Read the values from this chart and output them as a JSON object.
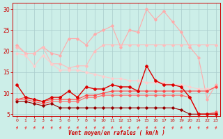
{
  "title": "",
  "xlabel": "Vent moyen/en rafales ( km/h )",
  "background_color": "#cceee8",
  "grid_color": "#aacccc",
  "xlim": [
    -0.5,
    23.5
  ],
  "ylim": [
    4.5,
    31.5
  ],
  "yticks": [
    5,
    10,
    15,
    20,
    25,
    30
  ],
  "xticks": [
    0,
    1,
    2,
    3,
    4,
    5,
    6,
    7,
    8,
    9,
    10,
    11,
    12,
    13,
    14,
    15,
    16,
    17,
    18,
    19,
    20,
    21,
    22,
    23
  ],
  "lines": [
    {
      "x": [
        0,
        1,
        2,
        3,
        4,
        5,
        6,
        7,
        8,
        9,
        10,
        11,
        12,
        13,
        14,
        15,
        16,
        17,
        18,
        19,
        20,
        21,
        22,
        23
      ],
      "y": [
        21.5,
        19.5,
        19.5,
        21.0,
        19.5,
        19.0,
        23.0,
        23.0,
        21.5,
        24.0,
        25.0,
        26.0,
        21.0,
        25.0,
        24.5,
        30.0,
        27.5,
        29.5,
        27.0,
        24.5,
        21.0,
        18.5,
        8.5,
        12.0
      ],
      "color": "#ffaaaa",
      "marker": "D",
      "markersize": 1.8,
      "linewidth": 0.8,
      "zorder": 2
    },
    {
      "x": [
        0,
        1,
        2,
        3,
        4,
        5,
        6,
        7,
        8,
        9,
        10,
        11,
        12,
        13,
        14,
        15,
        16,
        17,
        18,
        19,
        20,
        21,
        22,
        23
      ],
      "y": [
        21.0,
        19.5,
        19.5,
        21.0,
        17.0,
        17.0,
        16.0,
        16.5,
        16.5,
        20.0,
        21.5,
        21.5,
        21.5,
        21.5,
        21.5,
        21.5,
        21.5,
        21.5,
        21.5,
        21.5,
        21.5,
        21.5,
        21.5,
        21.5
      ],
      "color": "#ffbbbb",
      "marker": "D",
      "markersize": 1.8,
      "linewidth": 0.8,
      "zorder": 2
    },
    {
      "x": [
        0,
        1,
        2,
        3,
        4,
        5,
        6,
        7,
        8,
        9,
        10,
        11,
        12,
        13,
        14,
        15,
        16,
        17,
        18,
        19,
        20,
        21,
        22,
        23
      ],
      "y": [
        19.5,
        19.0,
        16.5,
        19.0,
        17.0,
        15.5,
        15.5,
        15.5,
        15.0,
        14.5,
        14.0,
        13.5,
        13.5,
        13.0,
        13.0,
        12.5,
        12.5,
        12.5,
        12.0,
        12.0,
        11.5,
        11.0,
        11.0,
        11.5
      ],
      "color": "#ffcccc",
      "marker": "D",
      "markersize": 1.8,
      "linewidth": 0.8,
      "zorder": 2
    },
    {
      "x": [
        0,
        1,
        2,
        3,
        4,
        5,
        6,
        7,
        8,
        9,
        10,
        11,
        12,
        13,
        14,
        15,
        16,
        17,
        18,
        19,
        20,
        21,
        22,
        23
      ],
      "y": [
        12.0,
        9.0,
        8.5,
        8.0,
        9.0,
        9.0,
        10.5,
        9.0,
        11.5,
        11.0,
        11.0,
        12.0,
        11.5,
        11.5,
        10.5,
        16.5,
        13.0,
        12.0,
        12.0,
        11.5,
        9.0,
        5.0,
        5.0,
        5.0
      ],
      "color": "#dd0000",
      "marker": "D",
      "markersize": 2.0,
      "linewidth": 1.0,
      "zorder": 3
    },
    {
      "x": [
        0,
        1,
        2,
        3,
        4,
        5,
        6,
        7,
        8,
        9,
        10,
        11,
        12,
        13,
        14,
        15,
        16,
        17,
        18,
        19,
        20,
        21,
        22,
        23
      ],
      "y": [
        8.5,
        9.0,
        8.5,
        8.0,
        8.5,
        8.5,
        8.5,
        8.5,
        9.5,
        9.5,
        10.0,
        10.5,
        10.5,
        10.5,
        10.5,
        10.5,
        10.5,
        10.5,
        10.5,
        10.5,
        10.5,
        10.5,
        10.5,
        11.5
      ],
      "color": "#ff4444",
      "marker": "D",
      "markersize": 1.8,
      "linewidth": 0.8,
      "zorder": 2
    },
    {
      "x": [
        0,
        1,
        2,
        3,
        4,
        5,
        6,
        7,
        8,
        9,
        10,
        11,
        12,
        13,
        14,
        15,
        16,
        17,
        18,
        19,
        20,
        21,
        22,
        23
      ],
      "y": [
        8.5,
        8.5,
        8.0,
        7.5,
        8.0,
        8.0,
        8.0,
        8.0,
        9.0,
        9.0,
        9.5,
        9.5,
        9.5,
        9.5,
        9.5,
        9.5,
        9.5,
        9.5,
        9.5,
        9.5,
        9.0,
        5.0,
        5.0,
        5.5
      ],
      "color": "#ff6666",
      "marker": "D",
      "markersize": 1.8,
      "linewidth": 0.8,
      "zorder": 2
    },
    {
      "x": [
        0,
        1,
        2,
        3,
        4,
        5,
        6,
        7,
        8,
        9,
        10,
        11,
        12,
        13,
        14,
        15,
        16,
        17,
        18,
        19,
        20,
        21,
        22,
        23
      ],
      "y": [
        8.0,
        8.0,
        7.5,
        7.0,
        7.5,
        6.5,
        6.5,
        6.5,
        6.5,
        6.5,
        6.5,
        6.5,
        6.5,
        6.5,
        6.5,
        6.5,
        6.5,
        6.5,
        6.5,
        6.0,
        5.0,
        5.0,
        5.0,
        5.0
      ],
      "color": "#990000",
      "marker": "D",
      "markersize": 1.8,
      "linewidth": 0.8,
      "zorder": 2
    }
  ],
  "arrow_color": "#ee4444",
  "tick_color": "#cc0000",
  "spine_color": "#cc0000"
}
